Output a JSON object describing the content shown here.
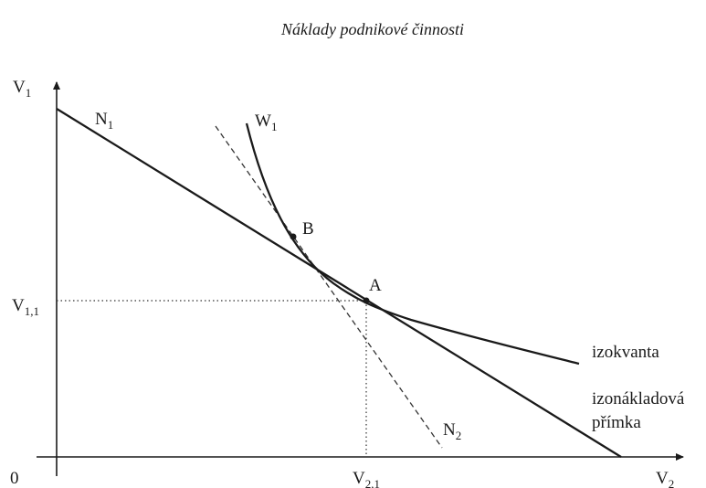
{
  "title": "Náklady podnikové činnosti",
  "axes": {
    "y_label": "V",
    "y_label_sub": "1",
    "x_label": "V",
    "x_label_sub": "2",
    "origin": "0"
  },
  "ticks": {
    "y_tick": "V",
    "y_tick_sub": "1,1",
    "x_tick": "V",
    "x_tick_sub": "2,1"
  },
  "lines": {
    "n1": "N",
    "n1_sub": "1",
    "n2": "N",
    "n2_sub": "2",
    "w1": "W",
    "w1_sub": "1"
  },
  "points": {
    "a": "A",
    "b": "B"
  },
  "annotations": {
    "isoquant": "izokvanta",
    "isocost_line1": "izonákladová",
    "isocost_line2": "přímka"
  }
}
